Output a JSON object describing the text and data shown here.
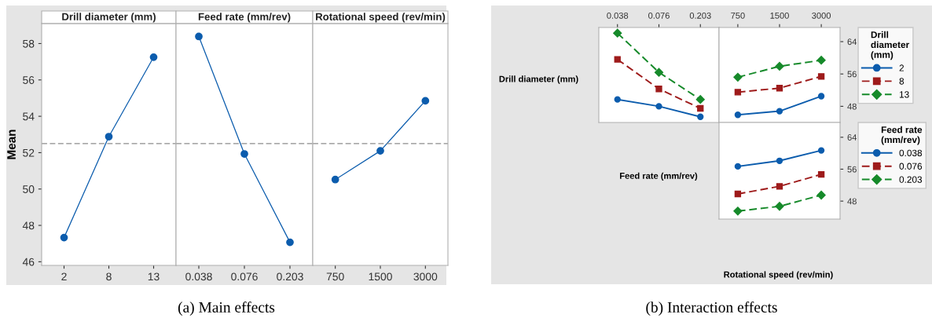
{
  "chart_data": [
    {
      "type": "line",
      "title": "Drill diameter (mm)",
      "ylabel": "Mean",
      "categories": [
        "2",
        "8",
        "13"
      ],
      "series": [
        {
          "color": "#0b5cad",
          "values": [
            47.33,
            52.88,
            57.25
          ]
        }
      ],
      "ylim": [
        45.8,
        59.1
      ],
      "yticks": [
        46,
        48,
        50,
        52,
        54,
        56,
        58
      ],
      "ref_lines": [
        {
          "axis": "y",
          "value": 52.5,
          "color": "#8c8c8c",
          "line_style": "dashed"
        }
      ],
      "marker": "circle",
      "annotations": [
        "(a) Main effects"
      ]
    },
    {
      "type": "line",
      "title": "Feed rate (mm/rev)",
      "categories": [
        "0.038",
        "0.076",
        "0.203"
      ],
      "series": [
        {
          "color": "#0b5cad",
          "values": [
            58.39,
            51.93,
            47.07
          ]
        }
      ],
      "ylim": [
        45.8,
        59.1
      ],
      "yticks": [
        46,
        48,
        50,
        52,
        54,
        56,
        58
      ],
      "tick_labels": "x",
      "ref_lines": [
        {
          "axis": "y",
          "value": 52.5,
          "color": "#8c8c8c",
          "line_style": "dashed"
        }
      ],
      "marker": "circle"
    },
    {
      "type": "line",
      "title": "Rotational speed (rev/min)",
      "categories": [
        "750",
        "1500",
        "3000"
      ],
      "series": [
        {
          "color": "#0b5cad",
          "values": [
            50.52,
            52.1,
            54.85
          ]
        }
      ],
      "ylim": [
        45.8,
        59.1
      ],
      "yticks": [
        46,
        48,
        50,
        52,
        54,
        56,
        58
      ],
      "tick_labels": "x",
      "ref_lines": [
        {
          "axis": "y",
          "value": 52.5,
          "color": "#8c8c8c",
          "line_style": "dashed"
        }
      ],
      "marker": "circle"
    },
    {
      "type": "line",
      "ylabel": "Drill diameter (mm)",
      "categories": [
        "0.038",
        "0.076",
        "0.203"
      ],
      "series": [
        {
          "color": "#0b5cad",
          "marker": "circle",
          "line_style": "solid",
          "values": [
            49.7,
            48.0,
            45.4
          ]
        },
        {
          "color": "#9e1b1b",
          "marker": "square",
          "line_style": "dashed",
          "values": [
            59.6,
            52.3,
            47.5
          ]
        },
        {
          "color": "#168a2a",
          "marker": "diamond",
          "line_style": "dashed",
          "values": [
            66.1,
            56.4,
            49.7
          ]
        }
      ],
      "ylim": [
        44,
        67.5
      ],
      "yticks": [
        48,
        56,
        64
      ],
      "tick_labels": "x",
      "annotations": [
        "(b) Interaction effects"
      ]
    },
    {
      "type": "line",
      "legend_title": "Drill diameter (mm)",
      "legend": "right",
      "categories": [
        "750",
        "1500",
        "3000"
      ],
      "series": [
        {
          "name": "2",
          "color": "#0b5cad",
          "marker": "circle",
          "line_style": "solid",
          "values": [
            45.9,
            46.8,
            50.5
          ]
        },
        {
          "name": "8",
          "color": "#9e1b1b",
          "marker": "square",
          "line_style": "dashed",
          "values": [
            51.5,
            52.5,
            55.4
          ]
        },
        {
          "name": "13",
          "color": "#168a2a",
          "marker": "diamond",
          "line_style": "dashed",
          "values": [
            55.2,
            57.9,
            59.4
          ]
        }
      ],
      "ylim": [
        44,
        67.5
      ],
      "yticks": [
        48,
        56,
        64
      ]
    },
    {
      "type": "line",
      "ylabel": "Feed rate (mm/rev)",
      "xlabel": "Rotational speed (rev/min)",
      "legend_title": "Feed rate (mm/rev)",
      "legend": "right",
      "categories": [
        "750",
        "1500",
        "3000"
      ],
      "series": [
        {
          "name": "0.038",
          "color": "#0b5cad",
          "marker": "circle",
          "line_style": "solid",
          "values": [
            56.7,
            58.1,
            60.7
          ]
        },
        {
          "name": "0.076",
          "color": "#9e1b1b",
          "marker": "square",
          "line_style": "dashed",
          "values": [
            49.8,
            51.7,
            54.7
          ]
        },
        {
          "name": "0.203",
          "color": "#168a2a",
          "marker": "diamond",
          "line_style": "dashed",
          "values": [
            45.5,
            46.7,
            49.5
          ]
        }
      ],
      "ylim": [
        43.5,
        67.7
      ],
      "yticks": [
        48,
        56,
        64
      ],
      "tick_labels": "y"
    }
  ]
}
